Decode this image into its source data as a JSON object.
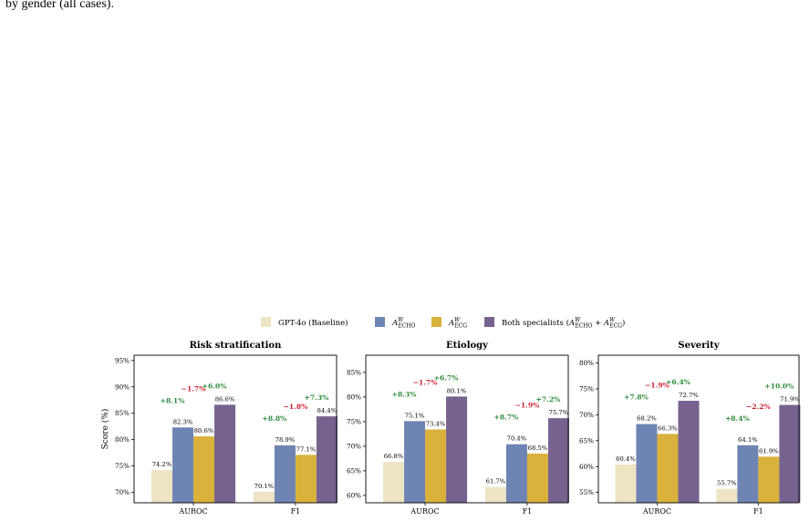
{
  "caption": "by gender (all cases).",
  "legend": [
    {
      "key": "baseline",
      "label": "GPT-4o (Baseline)",
      "color": "#ede4c4"
    },
    {
      "key": "echo",
      "label": "A^W_ECHO",
      "color": "#6e84b2"
    },
    {
      "key": "ecg",
      "label": "A^W_ECG",
      "color": "#d9b13b"
    },
    {
      "key": "both",
      "label": "Both specialists (A^W_ECHO + A^W_ECG)",
      "color": "#76628e"
    }
  ],
  "colors": {
    "positive": "#2e8b3c",
    "negative": "#cc1f2f"
  },
  "chart_data": [
    {
      "type": "bar",
      "title": "Risk stratification",
      "ylabel": "Score (%)",
      "categories": [
        "AUROC",
        "F1"
      ],
      "ylim": [
        68,
        96
      ],
      "yticks": [
        70,
        75,
        80,
        85,
        90,
        95
      ],
      "series": [
        {
          "name": "GPT-4o (Baseline)",
          "values": [
            74.2,
            70.1
          ]
        },
        {
          "name": "A^W_ECHO",
          "values": [
            82.3,
            78.9
          ]
        },
        {
          "name": "A^W_ECG",
          "values": [
            80.6,
            77.1
          ]
        },
        {
          "name": "Both specialists (A^W_ECHO + A^W_ECG)",
          "values": [
            86.6,
            84.4
          ]
        }
      ],
      "deltas": [
        [
          "+8.1%",
          "−1.7%",
          "+6.0%"
        ],
        [
          "+8.8%",
          "−1.8%",
          "+7.3%"
        ]
      ]
    },
    {
      "type": "bar",
      "title": "Etiology",
      "ylabel": "",
      "categories": [
        "AUROC",
        "F1"
      ],
      "ylim": [
        58.5,
        88.5
      ],
      "yticks": [
        60,
        65,
        70,
        75,
        80,
        85
      ],
      "series": [
        {
          "name": "GPT-4o (Baseline)",
          "values": [
            66.8,
            61.7
          ]
        },
        {
          "name": "A^W_ECHO",
          "values": [
            75.1,
            70.4
          ]
        },
        {
          "name": "A^W_ECG",
          "values": [
            73.4,
            68.5
          ]
        },
        {
          "name": "Both specialists (A^W_ECHO + A^W_ECG)",
          "values": [
            80.1,
            75.7
          ]
        }
      ],
      "deltas": [
        [
          "+8.3%",
          "−1.7%",
          "+6.7%"
        ],
        [
          "+8.7%",
          "−1.9%",
          "+7.2%"
        ]
      ]
    },
    {
      "type": "bar",
      "title": "Severity",
      "ylabel": "",
      "categories": [
        "AUROC",
        "F1"
      ],
      "ylim": [
        53,
        81.5
      ],
      "yticks": [
        55,
        60,
        65,
        70,
        75,
        80
      ],
      "series": [
        {
          "name": "GPT-4o (Baseline)",
          "values": [
            60.4,
            55.7
          ]
        },
        {
          "name": "A^W_ECHO",
          "values": [
            68.2,
            64.1
          ]
        },
        {
          "name": "A^W_ECG",
          "values": [
            66.3,
            61.9
          ]
        },
        {
          "name": "Both specialists (A^W_ECHO + A^W_ECG)",
          "values": [
            72.7,
            71.9
          ]
        }
      ],
      "deltas": [
        [
          "+7.8%",
          "−1.9%",
          "+6.4%"
        ],
        [
          "+8.4%",
          "−2.2%",
          "+10.0%"
        ]
      ]
    }
  ]
}
